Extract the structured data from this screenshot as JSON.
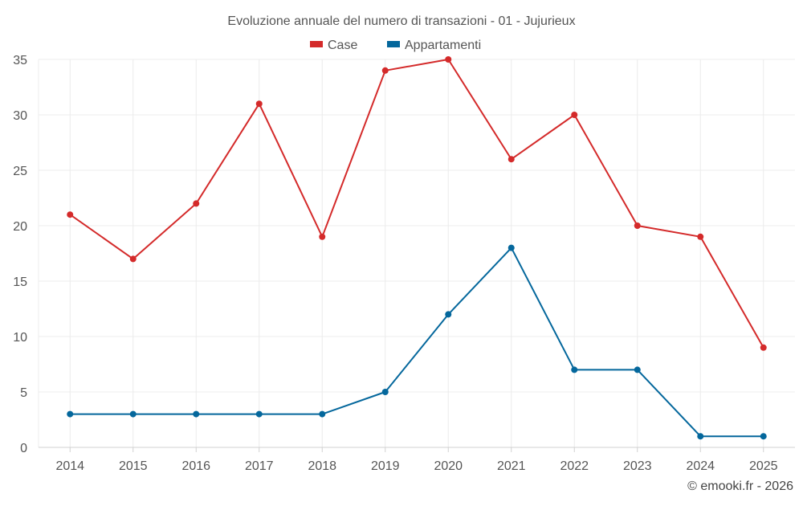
{
  "chart_data": {
    "type": "line",
    "title": "Evoluzione annuale del numero di transazioni - 01 - Jujurieux",
    "categories": [
      "2014",
      "2015",
      "2016",
      "2017",
      "2018",
      "2019",
      "2020",
      "2021",
      "2022",
      "2023",
      "2024",
      "2025"
    ],
    "series": [
      {
        "name": "Case",
        "color": "#d42a2a",
        "values": [
          21,
          17,
          22,
          31,
          19,
          34,
          35,
          26,
          30,
          20,
          19,
          9
        ]
      },
      {
        "name": "Appartamenti",
        "color": "#04679c",
        "values": [
          3,
          3,
          3,
          3,
          3,
          5,
          12,
          18,
          7,
          7,
          1,
          1
        ]
      }
    ],
    "ylim": [
      0,
      35
    ],
    "yticks": [
      0,
      5,
      10,
      15,
      20,
      25,
      30,
      35
    ],
    "xlabel": "",
    "ylabel": "",
    "grid": true,
    "legend": "top-center"
  },
  "footer": {
    "copyright": "© emooki.fr - 2026"
  }
}
